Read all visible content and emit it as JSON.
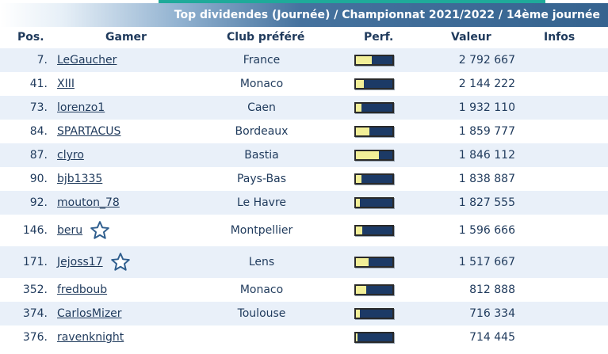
{
  "title": "Top dividendes (Journée) / Championnat 2021/2022 / 14ème journée",
  "headers": {
    "pos": "Pos.",
    "gamer": "Gamer",
    "club": "Club préféré",
    "perf": "Perf.",
    "valeur": "Valeur",
    "infos": "Infos"
  },
  "colors": {
    "title_bar": "#35638f",
    "accent": "#1faa9a",
    "row_alt": "#e9f0f9",
    "bar_bg": "#1c3a66",
    "bar_fill": "#f2ef98",
    "text": "#1f3a5c"
  },
  "rows": [
    {
      "pos": "7.",
      "gamer": "LeGaucher",
      "club": "France",
      "perf": 0.44,
      "valeur": "2 792 667",
      "star": false
    },
    {
      "pos": "41.",
      "gamer": "XIII",
      "club": "Monaco",
      "perf": 0.22,
      "valeur": "2 144 222",
      "star": false
    },
    {
      "pos": "73.",
      "gamer": "lorenzo1",
      "club": "Caen",
      "perf": 0.16,
      "valeur": "1 932 110",
      "star": false
    },
    {
      "pos": "84.",
      "gamer": "SPARTACUS",
      "club": "Bordeaux",
      "perf": 0.38,
      "valeur": "1 859 777",
      "star": false
    },
    {
      "pos": "87.",
      "gamer": "clyro",
      "club": "Bastia",
      "perf": 0.62,
      "valeur": "1 846 112",
      "star": false
    },
    {
      "pos": "90.",
      "gamer": "bjb1335",
      "club": "Pays-Bas",
      "perf": 0.16,
      "valeur": "1 838 887",
      "star": false
    },
    {
      "pos": "92.",
      "gamer": "mouton_78",
      "club": "Le Havre",
      "perf": 0.1,
      "valeur": "1 827 555",
      "star": false
    },
    {
      "pos": "146.",
      "gamer": "beru",
      "club": "Montpellier",
      "perf": 0.18,
      "valeur": "1 596 666",
      "star": true
    },
    {
      "pos": "171.",
      "gamer": "Jejoss17",
      "club": "Lens",
      "perf": 0.34,
      "valeur": "1 517 667",
      "star": true
    },
    {
      "pos": "352.",
      "gamer": "fredboub",
      "club": "Monaco",
      "perf": 0.28,
      "valeur": "812 888",
      "star": false
    },
    {
      "pos": "374.",
      "gamer": "CarlosMizer",
      "club": "Toulouse",
      "perf": 0.1,
      "valeur": "716 334",
      "star": false
    },
    {
      "pos": "376.",
      "gamer": "ravenknight",
      "club": "",
      "perf": 0.05,
      "valeur": "714 445",
      "star": false
    }
  ]
}
